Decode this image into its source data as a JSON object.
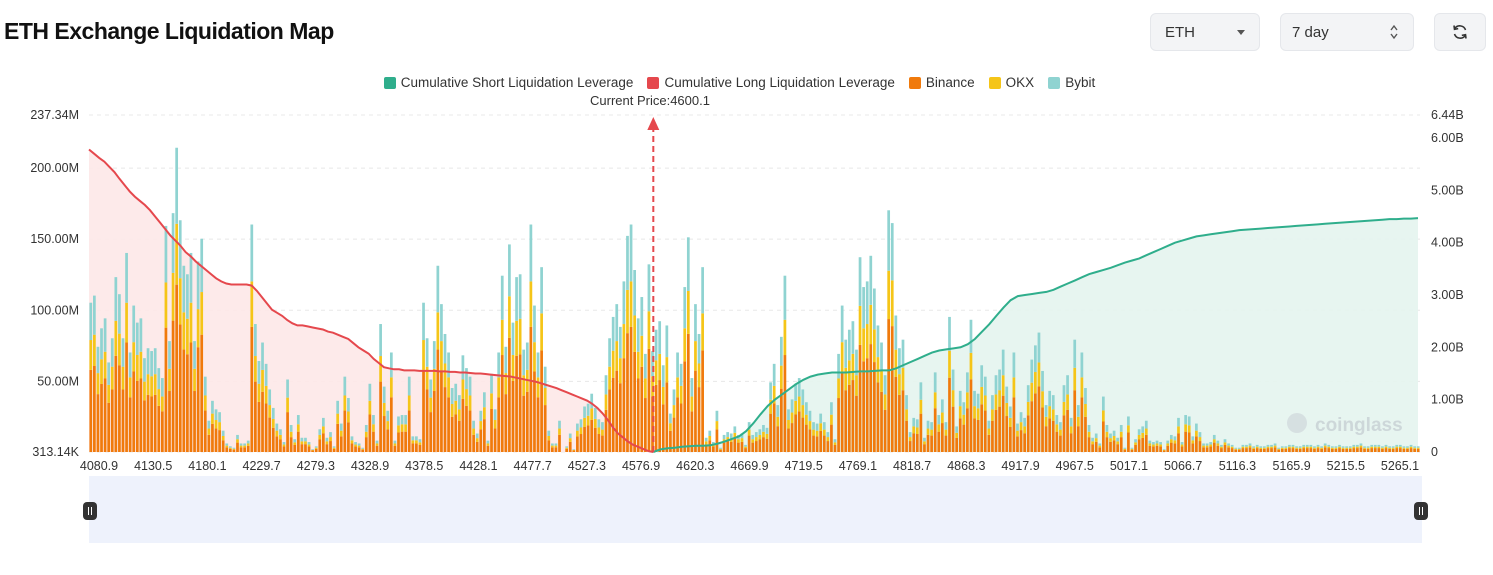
{
  "header": {
    "title": "ETH Exchange Liquidation Map",
    "coin_select": "ETH",
    "range_select": "7 day",
    "refresh_icon": "refresh-icon"
  },
  "colors": {
    "short_line": "#2fae8c",
    "short_fill": "#e4f4ee",
    "long_line": "#e5484d",
    "long_fill": "#fde8e8",
    "binance": "#f07a0c",
    "okx": "#f5c518",
    "bybit": "#8fd3d1",
    "price_marker": "#e5484d"
  },
  "chart_data": {
    "type": "bar",
    "watermark": "coinglass",
    "current_price_label": "Current Price:4600.1",
    "current_price": 4600.1,
    "legend": [
      {
        "name": "Cumulative Short Liquidation Leverage",
        "color": "#2fae8c"
      },
      {
        "name": "Cumulative Long Liquidation Leverage",
        "color": "#e5484d"
      },
      {
        "name": "Binance",
        "color": "#f07a0c"
      },
      {
        "name": "OKX",
        "color": "#f5c518"
      },
      {
        "name": "Bybit",
        "color": "#8fd3d1"
      }
    ],
    "y_left": {
      "ticks": [
        "313.14K",
        "50.00M",
        "100.00M",
        "150.00M",
        "200.00M",
        "237.34M"
      ],
      "values": [
        0.31314,
        50,
        100,
        150,
        200,
        237.34
      ],
      "unit": "M",
      "ylim": [
        0.31314,
        237.34
      ]
    },
    "y_right": {
      "ticks": [
        "0",
        "1.00B",
        "2.00B",
        "3.00B",
        "4.00B",
        "5.00B",
        "6.00B",
        "6.44B"
      ],
      "values": [
        0,
        1,
        2,
        3,
        4,
        5,
        6,
        6.44
      ],
      "unit": "B",
      "ylim": [
        0,
        6.44
      ]
    },
    "x_ticks": [
      "4080.9",
      "4130.5",
      "4180.1",
      "4229.7",
      "4279.3",
      "4328.9",
      "4378.5",
      "4428.1",
      "4477.7",
      "4527.3",
      "4576.9",
      "4620.3",
      "4669.9",
      "4719.5",
      "4769.1",
      "4818.7",
      "4868.3",
      "4917.9",
      "4967.5",
      "5017.1",
      "5066.7",
      "5116.3",
      "5165.9",
      "5215.5",
      "5265.1"
    ],
    "xlim": [
      4080.9,
      5305.5
    ],
    "bars_total": [
      105,
      110,
      74,
      87,
      94,
      63,
      80,
      123,
      111,
      80,
      140,
      70,
      103,
      91,
      94,
      66,
      73,
      71,
      73,
      59,
      52,
      159,
      78,
      168,
      214,
      163,
      131,
      125,
      140,
      78,
      134,
      150,
      53,
      22,
      36,
      30,
      28,
      15,
      6,
      4,
      3,
      12,
      6,
      6,
      8,
      160,
      90,
      64,
      77,
      62,
      44,
      31,
      20,
      16,
      7,
      51,
      19,
      9,
      26,
      10,
      10,
      7,
      2,
      4,
      16,
      24,
      10,
      14,
      4,
      36,
      20,
      53,
      38,
      11,
      7,
      6,
      3,
      19,
      48,
      26,
      8,
      90,
      46,
      29,
      70,
      8,
      25,
      26,
      26,
      53,
      11,
      11,
      9,
      105,
      80,
      51,
      78,
      131,
      104,
      83,
      70,
      45,
      48,
      40,
      68,
      59,
      53,
      22,
      13,
      29,
      42,
      8,
      55,
      30,
      70,
      124,
      74,
      146,
      91,
      123,
      125,
      72,
      77,
      160,
      103,
      70,
      130,
      60,
      15,
      6,
      6,
      22,
      0,
      4,
      13,
      2,
      20,
      23,
      32,
      34,
      41,
      31,
      23,
      21,
      54,
      80,
      95,
      104,
      88,
      120,
      152,
      160,
      128,
      94,
      109,
      69,
      132,
      71,
      86,
      92,
      61,
      89,
      27,
      44,
      70,
      62,
      116,
      151,
      52,
      104,
      83,
      130,
      10,
      15,
      7,
      29,
      3,
      12,
      14,
      13,
      18,
      12,
      13,
      5,
      21,
      12,
      14,
      16,
      19,
      17,
      49,
      62,
      33,
      81,
      124,
      30,
      37,
      48,
      52,
      44,
      35,
      29,
      21,
      20,
      27,
      21,
      14,
      35,
      9,
      69,
      103,
      79,
      86,
      92,
      72,
      137,
      116,
      120,
      138,
      115,
      89,
      77,
      54,
      170,
      161,
      96,
      73,
      79,
      40,
      14,
      24,
      23,
      49,
      10,
      22,
      21,
      56,
      26,
      37,
      21,
      95,
      58,
      18,
      43,
      35,
      56,
      93,
      43,
      41,
      61,
      53,
      22,
      40,
      54,
      58,
      72,
      46,
      32,
      70,
      20,
      28,
      24,
      47,
      65,
      75,
      84,
      57,
      33,
      43,
      40,
      26,
      21,
      47,
      54,
      24,
      79,
      33,
      70,
      45,
      19,
      10,
      13,
      6,
      39,
      19,
      13,
      15,
      10,
      19,
      3,
      25,
      3,
      9,
      16,
      18,
      22,
      8,
      7,
      8,
      7,
      2,
      8,
      12,
      11,
      24,
      7,
      26,
      25,
      11,
      20,
      14,
      6,
      6,
      7,
      12,
      8,
      5,
      9,
      6,
      5,
      3,
      3,
      5,
      5,
      6,
      4,
      5,
      4,
      4,
      5,
      5,
      6,
      3,
      4,
      4,
      5,
      5,
      4,
      4,
      5,
      5,
      5,
      4,
      5,
      4,
      6,
      5,
      4,
      4,
      5,
      4,
      4,
      4,
      5,
      5,
      6,
      4,
      4,
      5,
      5,
      5,
      4,
      5,
      4,
      4,
      5,
      5,
      4,
      4,
      5,
      4,
      4
    ],
    "bars_share": {
      "binance": 0.55,
      "okx": 0.2,
      "bybit": 0.25
    },
    "long_cumulative": [
      5.78,
      5.7,
      5.62,
      5.55,
      5.45,
      5.35,
      5.22,
      5.1,
      4.98,
      4.88,
      4.8,
      4.72,
      4.62,
      4.5,
      4.38,
      4.26,
      4.14,
      4.04,
      3.94,
      3.82,
      3.74,
      3.64,
      3.56,
      3.48,
      3.4,
      3.32,
      3.26,
      3.22,
      3.2,
      3.2,
      3.2,
      3.2,
      3.18,
      3.08,
      2.96,
      2.84,
      2.72,
      2.66,
      2.6,
      2.52,
      2.46,
      2.42,
      2.42,
      2.4,
      2.38,
      2.36,
      2.34,
      2.3,
      2.28,
      2.24,
      2.2,
      2.16,
      2.08,
      2.0,
      1.94,
      1.88,
      1.78,
      1.7,
      1.62,
      1.6,
      1.58,
      1.58,
      1.56,
      1.56,
      1.56,
      1.55,
      1.55,
      1.55,
      1.55,
      1.54,
      1.54,
      1.53,
      1.53,
      1.52,
      1.52,
      1.51,
      1.5,
      1.5,
      1.49,
      1.48,
      1.47,
      1.46,
      1.45,
      1.44,
      1.42,
      1.4,
      1.38,
      1.36,
      1.34,
      1.31,
      1.28,
      1.25,
      1.22,
      1.18,
      1.14,
      1.1,
      1.06,
      1.02,
      0.98,
      0.92,
      0.84,
      0.74,
      0.62,
      0.48,
      0.36,
      0.28,
      0.2,
      0.14,
      0.1,
      0.06,
      0.02,
      0.0
    ],
    "short_cumulative": [
      0.0,
      0.05,
      0.07,
      0.08,
      0.1,
      0.11,
      0.12,
      0.12,
      0.13,
      0.16,
      0.2,
      0.25,
      0.3,
      0.4,
      0.55,
      0.72,
      0.88,
      1.0,
      1.1,
      1.2,
      1.3,
      1.38,
      1.44,
      1.48,
      1.5,
      1.52,
      1.52,
      1.52,
      1.53,
      1.54,
      1.54,
      1.55,
      1.56,
      1.56,
      1.6,
      1.66,
      1.72,
      1.78,
      1.84,
      1.9,
      1.94,
      1.96,
      1.98,
      2.0,
      2.06,
      2.16,
      2.3,
      2.44,
      2.6,
      2.76,
      2.9,
      2.98,
      3.0,
      3.02,
      3.04,
      3.06,
      3.1,
      3.16,
      3.22,
      3.28,
      3.34,
      3.4,
      3.44,
      3.48,
      3.52,
      3.57,
      3.62,
      3.66,
      3.7,
      3.76,
      3.82,
      3.88,
      3.94,
      4.0,
      4.04,
      4.08,
      4.12,
      4.14,
      4.16,
      4.18,
      4.2,
      4.22,
      4.24,
      4.25,
      4.26,
      4.27,
      4.28,
      4.29,
      4.3,
      4.31,
      4.32,
      4.33,
      4.34,
      4.35,
      4.36,
      4.37,
      4.38,
      4.39,
      4.4,
      4.41,
      4.42,
      4.43,
      4.44,
      4.45,
      4.45,
      4.46,
      4.46,
      4.47
    ]
  }
}
